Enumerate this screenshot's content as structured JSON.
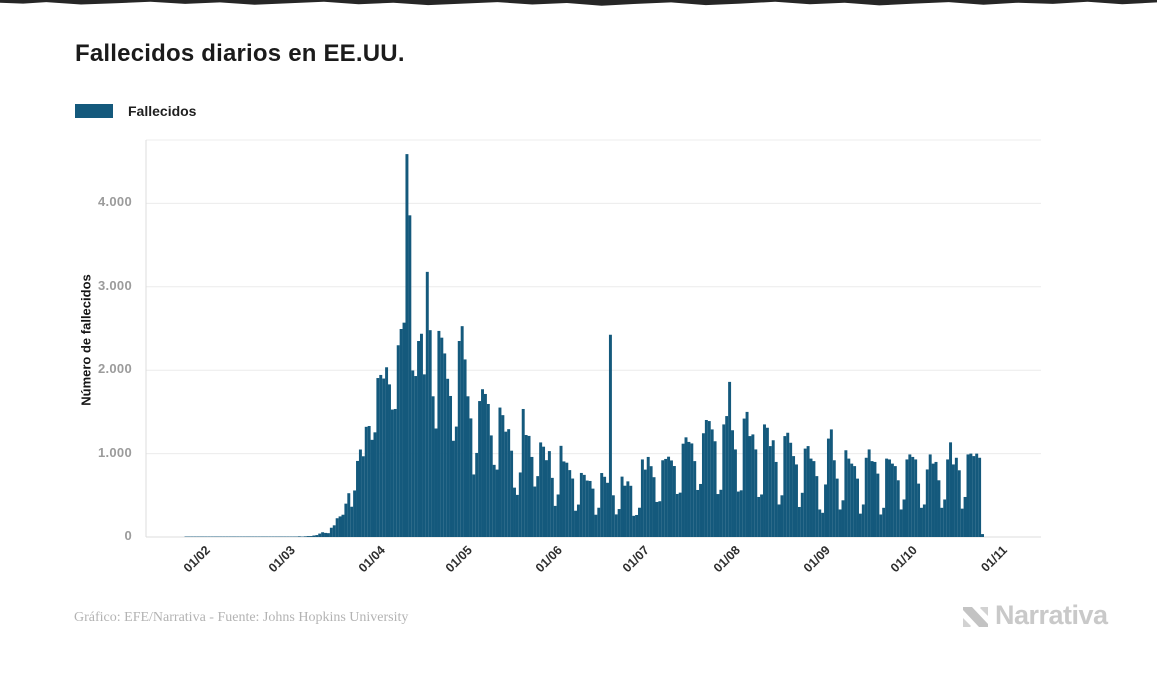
{
  "page": {
    "title": "Fallecidos diarios en EE.UU.",
    "credit": "Gráfico: EFE/Narrativa - Fuente: Johns Hopkins University",
    "brand": "Narrativa"
  },
  "legend": {
    "label": "Fallecidos",
    "position": "top-left"
  },
  "colors": {
    "bar": "#14597C",
    "grid": "#ececec",
    "axis": "#dcdcdc",
    "y_tick_text": "#9b9b9b",
    "x_tick_text": "#2e2e2e",
    "title_text": "#1b1b1b",
    "credit_text": "#b3b3b3",
    "brand_gray": "#c9c9c9"
  },
  "chart_data": {
    "type": "bar",
    "title": "Fallecidos diarios en EE.UU.",
    "xlabel": "",
    "ylabel": "Número de fallecidos",
    "series_name": "Fallecidos",
    "grid": "horizontal",
    "legend_position": "top-left",
    "ylim": [
      0,
      4760
    ],
    "start_date": "26/01/2020",
    "end_date": "01/11/2020",
    "y_ticks": [
      {
        "label": "0",
        "value": 0
      },
      {
        "label": "1.000",
        "value": 1000
      },
      {
        "label": "2.000",
        "value": 2000
      },
      {
        "label": "3.000",
        "value": 3000
      },
      {
        "label": "4.000",
        "value": 4000
      }
    ],
    "x_ticks": [
      {
        "label": "01/02",
        "day_index": 6
      },
      {
        "label": "01/03",
        "day_index": 35
      },
      {
        "label": "01/04",
        "day_index": 66
      },
      {
        "label": "01/05",
        "day_index": 96
      },
      {
        "label": "01/06",
        "day_index": 127
      },
      {
        "label": "01/07",
        "day_index": 157
      },
      {
        "label": "01/08",
        "day_index": 188
      },
      {
        "label": "01/09",
        "day_index": 219
      },
      {
        "label": "01/10",
        "day_index": 249
      },
      {
        "label": "01/11",
        "day_index": 280
      }
    ],
    "values": [
      0,
      0,
      0,
      0,
      0,
      0,
      0,
      0,
      0,
      0,
      0,
      0,
      0,
      0,
      0,
      0,
      0,
      0,
      0,
      0,
      0,
      0,
      0,
      0,
      0,
      0,
      0,
      0,
      1,
      1,
      4,
      3,
      4,
      3,
      3,
      4,
      3,
      4,
      4,
      8,
      3,
      8,
      11,
      11,
      18,
      23,
      41,
      57,
      49,
      46,
      111,
      140,
      225,
      247,
      267,
      400,
      525,
      363,
      558,
      912,
      1049,
      968,
      1321,
      1331,
      1165,
      1255,
      1906,
      1943,
      1900,
      2035,
      1830,
      1528,
      1535,
      2299,
      2494,
      2570,
      4591,
      3857,
      1997,
      1930,
      2350,
      2437,
      1950,
      3179,
      2480,
      1687,
      1301,
      2471,
      2390,
      2201,
      1897,
      1691,
      1154,
      1324,
      2350,
      2528,
      2129,
      1687,
      1422,
      750,
      1008,
      1630,
      1772,
      1715,
      1595,
      1218,
      865,
      808,
      1552,
      1461,
      1263,
      1293,
      1035,
      592,
      505,
      774,
      1535,
      1223,
      1212,
      960,
      605,
      730,
      1134,
      1083,
      921,
      1030,
      709,
      373,
      510,
      1093,
      906,
      891,
      802,
      701,
      315,
      389,
      768,
      745,
      677,
      672,
      580,
      267,
      351,
      767,
      722,
      650,
      2425,
      500,
      271,
      335,
      724,
      615,
      667,
      614,
      254,
      264,
      351,
      930,
      808,
      960,
      849,
      717,
      420,
      429,
      920,
      936,
      963,
      918,
      851,
      516,
      532,
      1119,
      1195,
      1140,
      1122,
      910,
      564,
      636,
      1244,
      1403,
      1390,
      1290,
      1148,
      515,
      566,
      1350,
      1450,
      1860,
      1280,
      1050,
      545,
      560,
      1420,
      1500,
      1210,
      1230,
      1050,
      480,
      510,
      1350,
      1310,
      1090,
      1160,
      900,
      390,
      500,
      1210,
      1250,
      1130,
      970,
      870,
      360,
      530,
      1060,
      1090,
      940,
      910,
      730,
      330,
      290,
      630,
      1180,
      1290,
      920,
      700,
      330,
      440,
      1040,
      940,
      880,
      850,
      700,
      280,
      390,
      950,
      1050,
      910,
      900,
      760,
      270,
      350,
      940,
      930,
      880,
      850,
      680,
      330,
      450,
      930,
      990,
      960,
      930,
      640,
      350,
      390,
      810,
      990,
      880,
      900,
      680,
      350,
      450,
      930,
      1135,
      870,
      950,
      800,
      340,
      480,
      990,
      1000,
      970,
      1000,
      950,
      35
    ]
  }
}
